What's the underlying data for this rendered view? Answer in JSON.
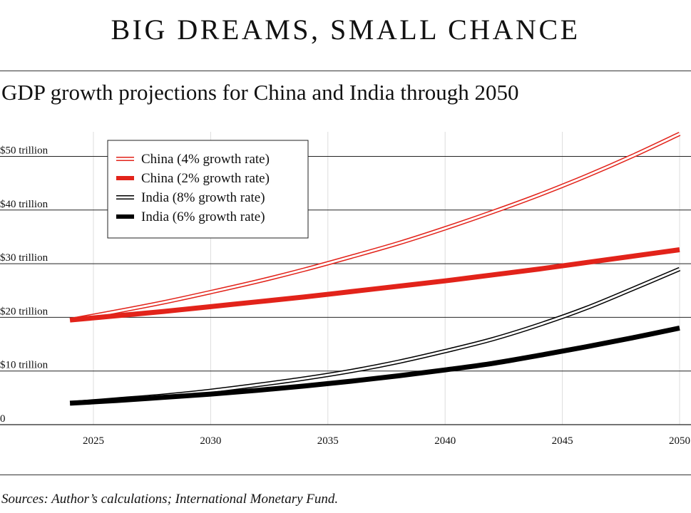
{
  "header": {
    "title": "BIG DREAMS, SMALL CHANCE",
    "subtitle": "GDP growth projections for China and India through 2050"
  },
  "footer": {
    "source": "Sources: Author’s calculations; International Monetary Fund."
  },
  "colors": {
    "china": "#e2231a",
    "india": "#000000",
    "grid": "#222222",
    "vgrid": "#dddddd"
  },
  "chart_data": {
    "type": "line",
    "title": "GDP growth projections for China and India through 2050",
    "xlabel": "",
    "ylabel": "",
    "xlim": [
      2024,
      2050
    ],
    "ylim": [
      0,
      55
    ],
    "x_ticks": [
      2025,
      2030,
      2035,
      2040,
      2045,
      2050
    ],
    "x_tick_labels": [
      "2025",
      "2030",
      "2035",
      "2040",
      "2045",
      "2050"
    ],
    "y_ticks": [
      0,
      10,
      20,
      30,
      40,
      50
    ],
    "y_tick_labels": [
      "0",
      "$10 trillion",
      "$20 trillion",
      "$30 trillion",
      "$40 trillion",
      "$50 trillion"
    ],
    "grid": true,
    "legend_position": "top-left",
    "series": [
      {
        "name": "China (4% growth rate)",
        "style": "double",
        "color": "#e2231a",
        "x": [
          2024,
          2026,
          2028,
          2030,
          2032,
          2034,
          2036,
          2038,
          2040,
          2042,
          2044,
          2046,
          2048,
          2050
        ],
        "values": [
          19.5,
          21.1,
          22.8,
          24.7,
          26.7,
          28.9,
          31.3,
          33.8,
          36.6,
          39.6,
          42.8,
          46.3,
          50.1,
          54.2
        ]
      },
      {
        "name": "China (2% growth rate)",
        "style": "thick",
        "color": "#e2231a",
        "x": [
          2024,
          2026,
          2028,
          2030,
          2032,
          2034,
          2036,
          2038,
          2040,
          2042,
          2044,
          2046,
          2048,
          2050
        ],
        "values": [
          19.5,
          20.3,
          21.1,
          22.0,
          22.9,
          23.8,
          24.8,
          25.8,
          26.8,
          27.9,
          29.0,
          30.2,
          31.4,
          32.6
        ]
      },
      {
        "name": "India (8% growth rate)",
        "style": "double",
        "color": "#000000",
        "x": [
          2024,
          2026,
          2028,
          2030,
          2032,
          2034,
          2036,
          2038,
          2040,
          2042,
          2044,
          2046,
          2048,
          2050
        ],
        "values": [
          4.0,
          4.7,
          5.4,
          6.3,
          7.4,
          8.6,
          10.0,
          11.7,
          13.7,
          15.9,
          18.6,
          21.7,
          25.3,
          29.0
        ]
      },
      {
        "name": "India (6% growth rate)",
        "style": "thick",
        "color": "#000000",
        "x": [
          2024,
          2026,
          2028,
          2030,
          2032,
          2034,
          2036,
          2038,
          2040,
          2042,
          2044,
          2046,
          2048,
          2050
        ],
        "values": [
          4.0,
          4.5,
          5.1,
          5.7,
          6.4,
          7.2,
          8.1,
          9.1,
          10.2,
          11.4,
          12.9,
          14.5,
          16.2,
          18.0
        ]
      }
    ]
  }
}
